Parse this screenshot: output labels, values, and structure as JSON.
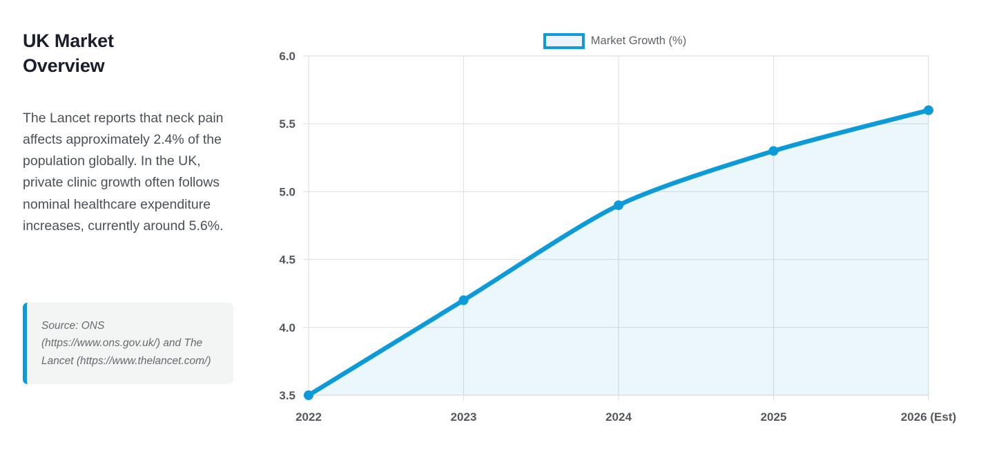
{
  "sidebar": {
    "title": "UK Market Overview",
    "paragraph": "The Lancet reports that neck pain affects approximately 2.4% of the population globally. In the UK, private clinic growth often follows nominal healthcare expenditure increases, currently around 5.6%.",
    "source": "Source: ONS (https://www.ons.gov.uk/) and The Lancet (https://www.thelancet.com/)"
  },
  "chart_data": {
    "type": "area",
    "title": "",
    "xlabel": "",
    "ylabel": "",
    "legend": "Market Growth (%)",
    "legend_position": "top",
    "grid": true,
    "categories": [
      "2022",
      "2023",
      "2024",
      "2025",
      "2026 (Est)"
    ],
    "series": [
      {
        "name": "Market Growth (%)",
        "values": [
          3.5,
          4.2,
          4.9,
          5.3,
          5.6
        ]
      }
    ],
    "ylim": [
      3.5,
      6.0
    ],
    "yticks": [
      3.5,
      4.0,
      4.5,
      5.0,
      5.5,
      6.0
    ],
    "ytick_labels": [
      "3.5",
      "4.0",
      "4.5",
      "5.0",
      "5.5",
      "6.0"
    ],
    "colors": {
      "line": "#0d9ad9",
      "fill": "rgba(13,154,217,0.08)",
      "legend_fill": "#eaf4fa",
      "grid": "#e4e4e4",
      "tick_text": "#53575e",
      "legend_text": "#5f6368"
    }
  }
}
